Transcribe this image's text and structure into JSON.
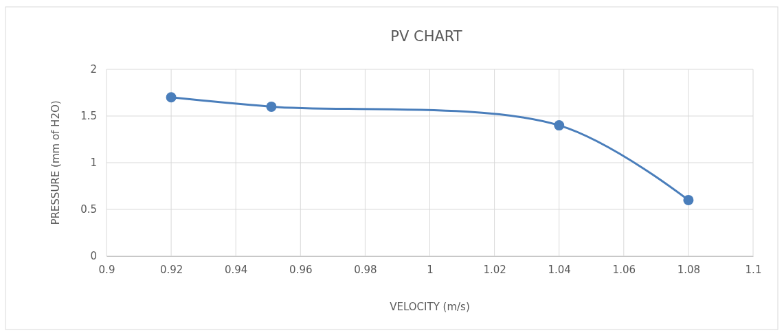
{
  "chart_data": {
    "type": "line",
    "title": "PV CHART",
    "xlabel": "VELOCITY (m/s)",
    "ylabel": "PRESSURE (mm of H2O)",
    "x": [
      0.92,
      0.951,
      1.04,
      1.08
    ],
    "series": [
      {
        "color": "#4a7ebb",
        "values": [
          1.7,
          1.6,
          1.4,
          0.6
        ]
      }
    ],
    "xlim": [
      0.9,
      1.1
    ],
    "xticks": [
      0.9,
      0.92,
      0.94,
      0.96,
      0.98,
      1,
      1.02,
      1.04,
      1.06,
      1.08,
      1.1
    ],
    "ylim": [
      0,
      2
    ],
    "yticks": [
      0,
      0.5,
      1,
      1.5,
      2
    ],
    "grid": true,
    "marker": "circle",
    "line_style": "solid"
  }
}
